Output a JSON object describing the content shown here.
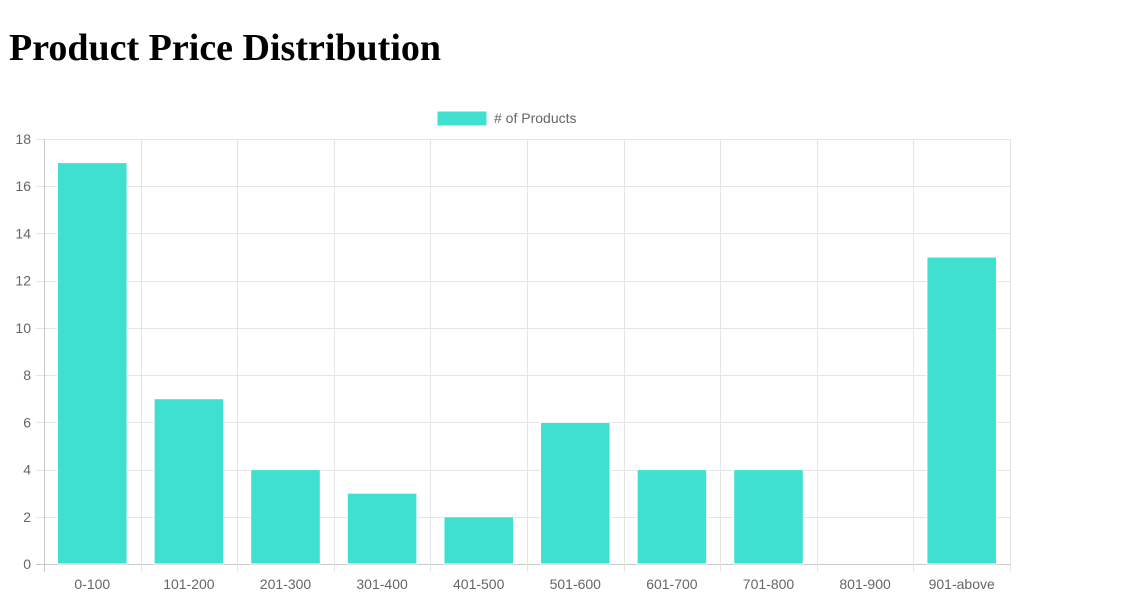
{
  "page": {
    "title": "Product Price Distribution"
  },
  "colors": {
    "bar_fill": "#40e0d0",
    "bar_border": "#ffffff",
    "grid": "#e5e5e5",
    "tick_text": "#666666"
  },
  "chart_data": {
    "type": "bar",
    "title": "",
    "xlabel": "",
    "ylabel": "",
    "categories": [
      "0-100",
      "101-200",
      "201-300",
      "301-400",
      "401-500",
      "501-600",
      "601-700",
      "701-800",
      "801-900",
      "901-above"
    ],
    "series": [
      {
        "name": "# of Products",
        "values": [
          17,
          7,
          4,
          3,
          2,
          6,
          4,
          4,
          0,
          13
        ]
      }
    ],
    "ylim": [
      0,
      18
    ],
    "yticks": [
      0,
      2,
      4,
      6,
      8,
      10,
      12,
      14,
      16,
      18
    ],
    "grid": true,
    "legend_position": "top"
  }
}
